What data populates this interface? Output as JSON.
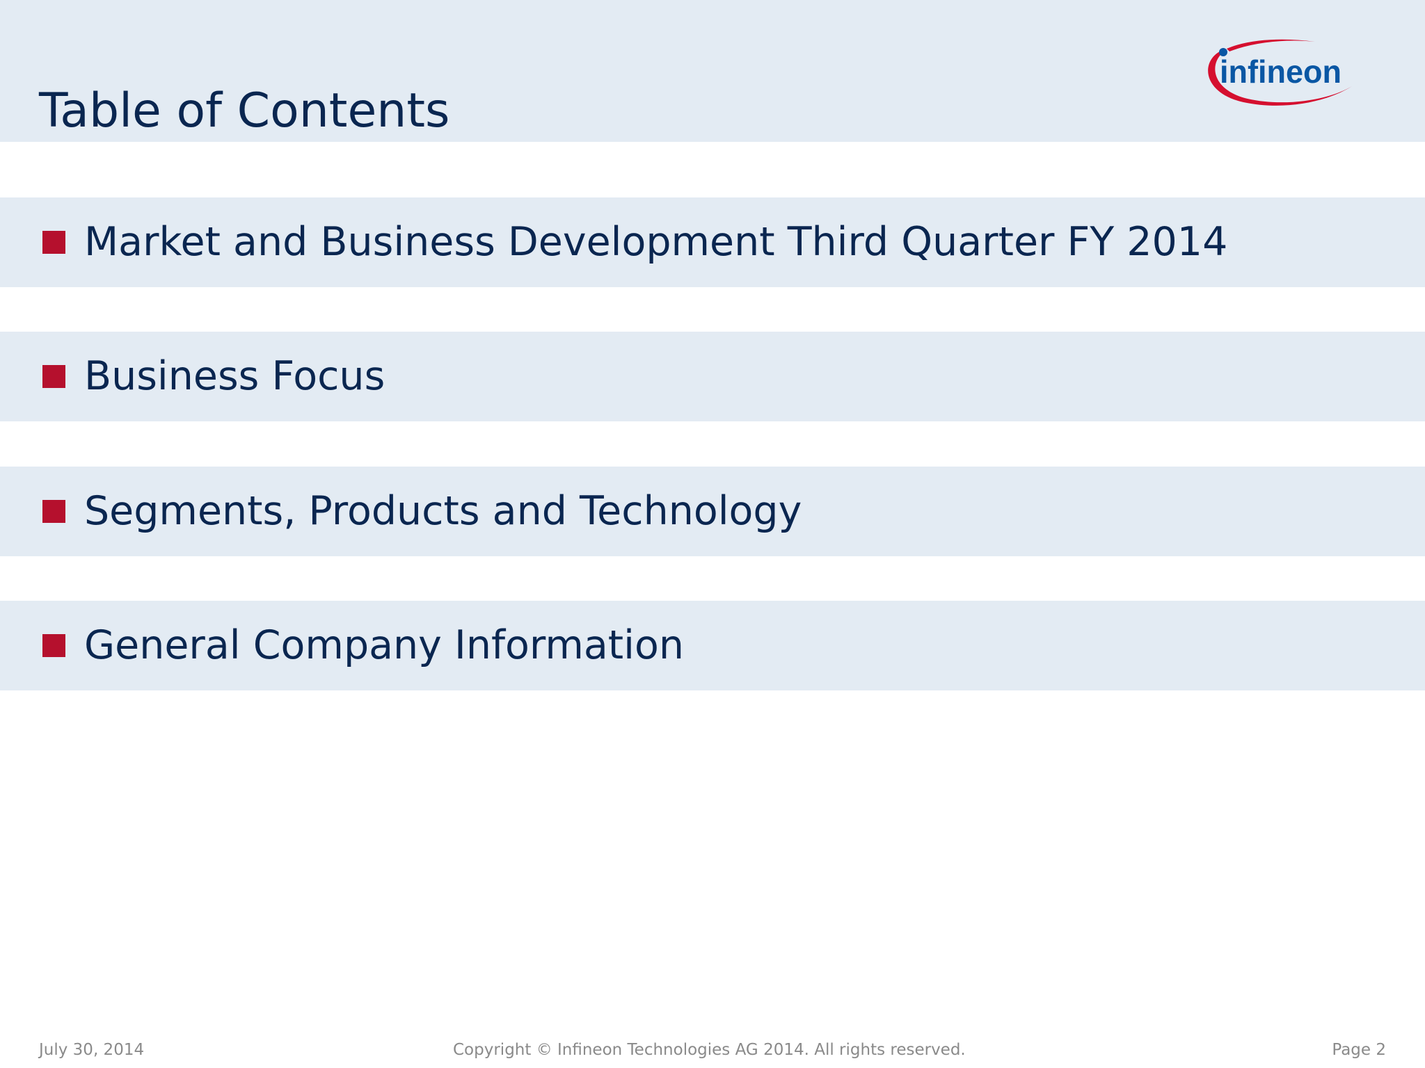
{
  "header": {
    "title": "Table of Contents",
    "logo_text": "infineon",
    "logo_icon": "infineon-logo"
  },
  "toc": {
    "items": [
      {
        "label": "Market and Business Development Third Quarter FY 2014"
      },
      {
        "label": "Business Focus"
      },
      {
        "label": "Segments, Products and Technology"
      },
      {
        "label": "General Company Information"
      }
    ]
  },
  "footer": {
    "date": "July 30, 2014",
    "copyright": "Copyright © Infineon Technologies AG 2014. All rights reserved.",
    "page": "Page 2"
  },
  "colors": {
    "band": "#e3ebf3",
    "title_text": "#0a2650",
    "bullet_red": "#b5102d",
    "logo_blue": "#0a57a4",
    "logo_red": "#d50f2f",
    "footer_text": "#8a8a8a"
  }
}
